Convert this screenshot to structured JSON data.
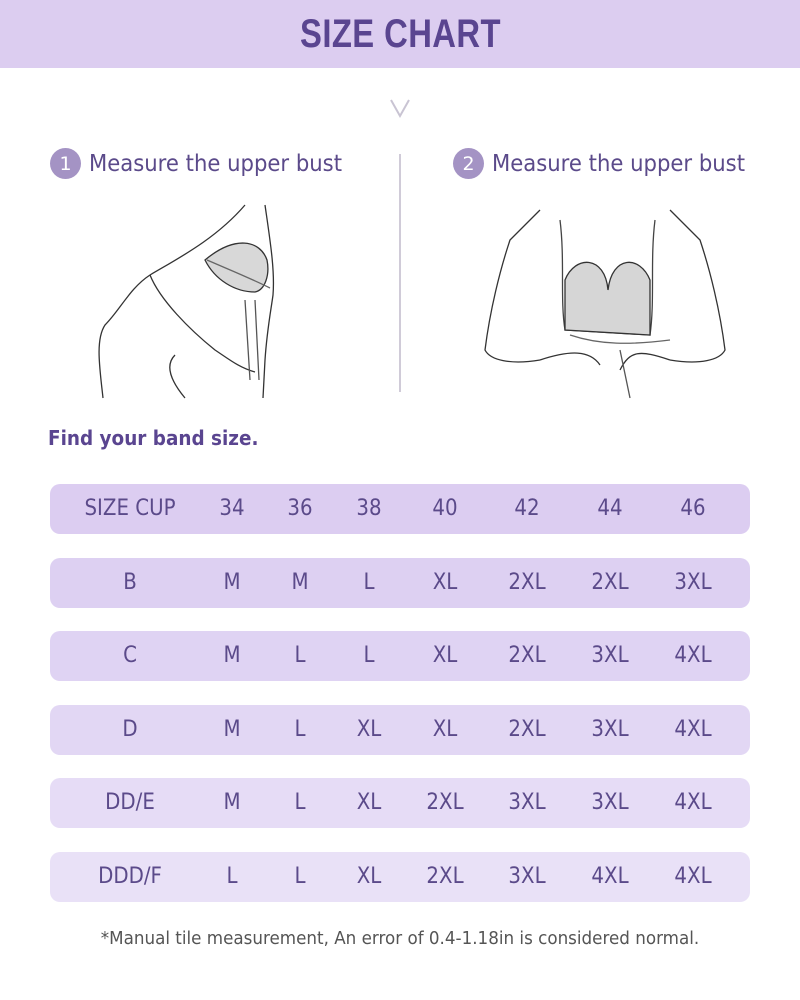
{
  "header": {
    "title": "SIZE CHART"
  },
  "steps": [
    {
      "number": "1",
      "label": "Measure the upper bust"
    },
    {
      "number": "2",
      "label": "Measure the upper bust"
    }
  ],
  "band_heading": "Find your band size.",
  "table": {
    "headers": [
      "SIZE CUP",
      "34",
      "36",
      "38",
      "40",
      "42",
      "44",
      "46"
    ],
    "rows": [
      [
        "B",
        "M",
        "M",
        "L",
        "XL",
        "2XL",
        "2XL",
        "3XL"
      ],
      [
        "C",
        "M",
        "L",
        "L",
        "XL",
        "2XL",
        "3XL",
        "4XL"
      ],
      [
        "D",
        "M",
        "L",
        "XL",
        "XL",
        "2XL",
        "3XL",
        "4XL"
      ],
      [
        "DD/E",
        "M",
        "L",
        "XL",
        "2XL",
        "3XL",
        "3XL",
        "4XL"
      ],
      [
        "DDD/F",
        "L",
        "L",
        "XL",
        "2XL",
        "3XL",
        "4XL",
        "4XL"
      ]
    ]
  },
  "footnote": "*Manual tile measurement, An error of 0.4-1.18in is considered normal.",
  "colors": {
    "banner": "#dccdf0",
    "accent": "#5a4590",
    "row": "#ddd0f2",
    "badge": "#a493c4"
  }
}
